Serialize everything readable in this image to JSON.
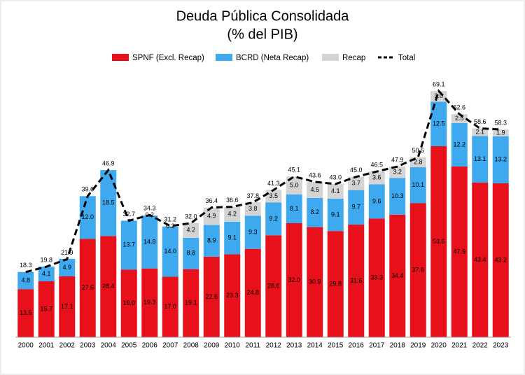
{
  "chart_data": {
    "type": "stacked-bar-line",
    "title": "Deuda Pública Consolidada",
    "subtitle": "(% del PIB)",
    "categories": [
      "2000",
      "2001",
      "2002",
      "2003",
      "2004",
      "2005",
      "2006",
      "2007",
      "2008",
      "2009",
      "2010",
      "2011",
      "2012",
      "2013",
      "2014",
      "2015",
      "2016",
      "2017",
      "2018",
      "2019",
      "2020",
      "2021",
      "2022",
      "2023"
    ],
    "ylim": [
      0,
      75
    ],
    "series": [
      {
        "name": "SPNF (Excl. Recap)",
        "color": "#e8101a",
        "values": [
          13.5,
          15.7,
          17.1,
          27.6,
          28.4,
          19.0,
          19.3,
          17.0,
          19.1,
          22.6,
          23.3,
          24.8,
          28.6,
          32.0,
          30.9,
          29.8,
          31.6,
          33.3,
          34.4,
          37.6,
          53.6,
          47.9,
          43.4,
          43.2
        ],
        "value_labels": [
          "13.5",
          "15.7",
          "17.1",
          "27.6",
          "28.4",
          "19.0",
          "19.3",
          "17.0",
          "19.1",
          "22.6",
          "23.3",
          "24.8",
          "28.6",
          "32.0",
          "30.9",
          "29.8",
          "31.6",
          "33.3",
          "34.4",
          "37.6",
          "53.6",
          "47.9",
          "43.4",
          "43.2"
        ]
      },
      {
        "name": "BCRD (Neta Recap)",
        "color": "#3fa9f0",
        "values": [
          4.8,
          4.1,
          4.9,
          12.0,
          18.5,
          13.7,
          14.8,
          14.0,
          8.8,
          8.9,
          9.1,
          9.3,
          9.2,
          8.1,
          8.2,
          9.1,
          9.7,
          9.6,
          10.3,
          10.1,
          12.5,
          12.2,
          13.1,
          13.2
        ],
        "value_labels": [
          "4.8",
          "4.1",
          "4.9",
          "12.0",
          "18.5",
          "13.7",
          "14.8",
          "14.0",
          "8.8",
          "8.9",
          "9.1",
          "9.3",
          "9.2",
          "8.1",
          "8.2",
          "9.1",
          "9.7",
          "9.6",
          "10.3",
          "10.1",
          "12.5",
          "12.2",
          "13.1",
          "13.2"
        ]
      },
      {
        "name": "Recap",
        "color": "#d4d4d4",
        "values": [
          null,
          null,
          null,
          null,
          null,
          null,
          0.2,
          0.2,
          4.2,
          4.9,
          4.2,
          3.8,
          3.5,
          5.0,
          4.5,
          4.1,
          3.7,
          3.6,
          3.2,
          2.8,
          3.0,
          2.5,
          2.1,
          1.9
        ],
        "value_labels": [
          null,
          null,
          null,
          null,
          null,
          null,
          "0.2",
          "0.2",
          "4.2",
          "4.9",
          "4.2",
          "3.8",
          "3.5",
          "5.0",
          "4.5",
          "4.1",
          "3.7",
          "3.6",
          "3.2",
          "2.8",
          "3.0",
          "2.5",
          "2.1",
          "1.9"
        ]
      }
    ],
    "total": {
      "name": "Total",
      "color": "#000000",
      "values": [
        18.3,
        19.8,
        21.9,
        39.6,
        46.9,
        32.7,
        34.3,
        31.2,
        32.0,
        36.4,
        36.6,
        37.8,
        41.3,
        45.1,
        43.6,
        43.0,
        45.0,
        46.5,
        47.9,
        50.5,
        69.1,
        62.6,
        58.6,
        58.3
      ],
      "value_labels": [
        "18.3",
        "19.8",
        "21.9",
        "39.6",
        "46.9",
        "32.7",
        "34.3",
        "31.2",
        "32.0",
        "36.4",
        "36.6",
        "37.8",
        "41.3",
        "45.1",
        "43.6",
        "43.0",
        "45.0",
        "46.5",
        "47.9",
        "50.5",
        "69.1",
        "62.6",
        "58.6",
        "58.3"
      ]
    }
  }
}
